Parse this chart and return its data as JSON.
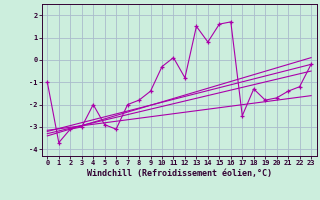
{
  "xlabel": "Windchill (Refroidissement éolien,°C)",
  "bg_color": "#cceedd",
  "grid_color": "#aabbcc",
  "line_color": "#aa00aa",
  "xlim": [
    -0.5,
    23.5
  ],
  "ylim": [
    -4.3,
    2.5
  ],
  "yticks": [
    -4,
    -3,
    -2,
    -1,
    0,
    1,
    2
  ],
  "xticks": [
    0,
    1,
    2,
    3,
    4,
    5,
    6,
    7,
    8,
    9,
    10,
    11,
    12,
    13,
    14,
    15,
    16,
    17,
    18,
    19,
    20,
    21,
    22,
    23
  ],
  "main_x": [
    0,
    1,
    2,
    3,
    4,
    5,
    6,
    7,
    8,
    9,
    10,
    11,
    12,
    13,
    14,
    15,
    16,
    17,
    18,
    19,
    20,
    21,
    22,
    23
  ],
  "main_y": [
    -1.0,
    -3.7,
    -3.1,
    -3.0,
    -2.0,
    -2.9,
    -3.1,
    -2.0,
    -1.8,
    -1.4,
    -0.3,
    0.1,
    -0.8,
    1.5,
    0.8,
    1.6,
    1.7,
    -2.5,
    -1.3,
    -1.8,
    -1.7,
    -1.4,
    -1.2,
    -0.2
  ],
  "line1_x": [
    0,
    23
  ],
  "line1_y": [
    -3.2,
    -0.2
  ],
  "line2_x": [
    0,
    23
  ],
  "line2_y": [
    -3.3,
    -0.5
  ],
  "line3_x": [
    0,
    23
  ],
  "line3_y": [
    -3.4,
    0.1
  ],
  "line4_x": [
    0,
    23
  ],
  "line4_y": [
    -3.15,
    -1.6
  ]
}
